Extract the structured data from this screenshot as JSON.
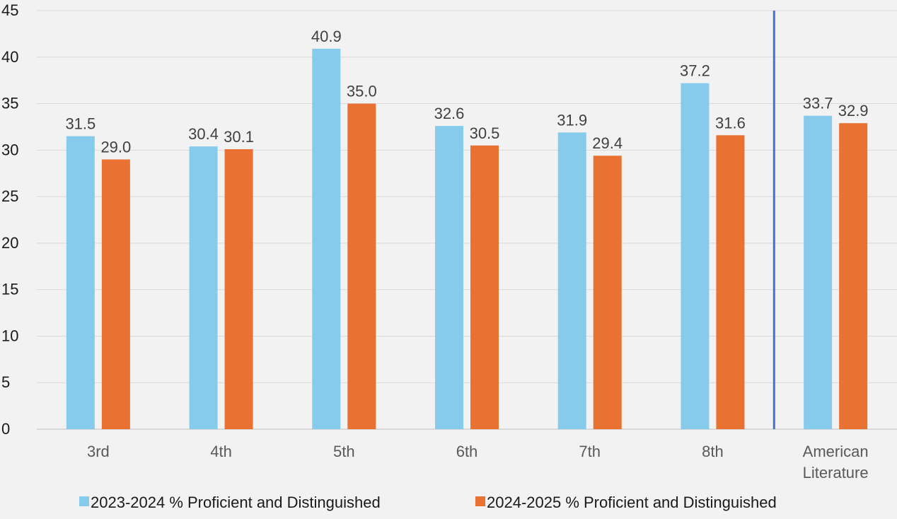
{
  "chart_data": {
    "type": "bar",
    "categories": [
      [
        "3rd"
      ],
      [
        "4th"
      ],
      [
        "5th"
      ],
      [
        "6th"
      ],
      [
        "7th"
      ],
      [
        "8th"
      ],
      [
        "American",
        "Literature"
      ]
    ],
    "series": [
      {
        "name": "2023-2024 % Proficient and Distinguished",
        "color": "#86CBEC",
        "values": [
          31.5,
          30.4,
          40.9,
          32.6,
          31.9,
          37.2,
          33.7
        ]
      },
      {
        "name": "2024-2025 % Proficient and Distinguished",
        "color": "#E97132",
        "values": [
          29.0,
          30.1,
          35.0,
          30.5,
          29.4,
          31.6,
          32.9
        ]
      }
    ],
    "title": "",
    "xlabel": "",
    "ylabel": "",
    "ylim": [
      0,
      45
    ],
    "yticks": [
      0,
      5,
      10,
      15,
      20,
      25,
      30,
      35,
      40,
      45
    ],
    "grid": true,
    "legend_position": "bottom",
    "separator_after_category_index": 5,
    "separator_color": "#4472C4",
    "gridline_color": "#d9d9d9",
    "axis_color": "#bfbfbf"
  }
}
